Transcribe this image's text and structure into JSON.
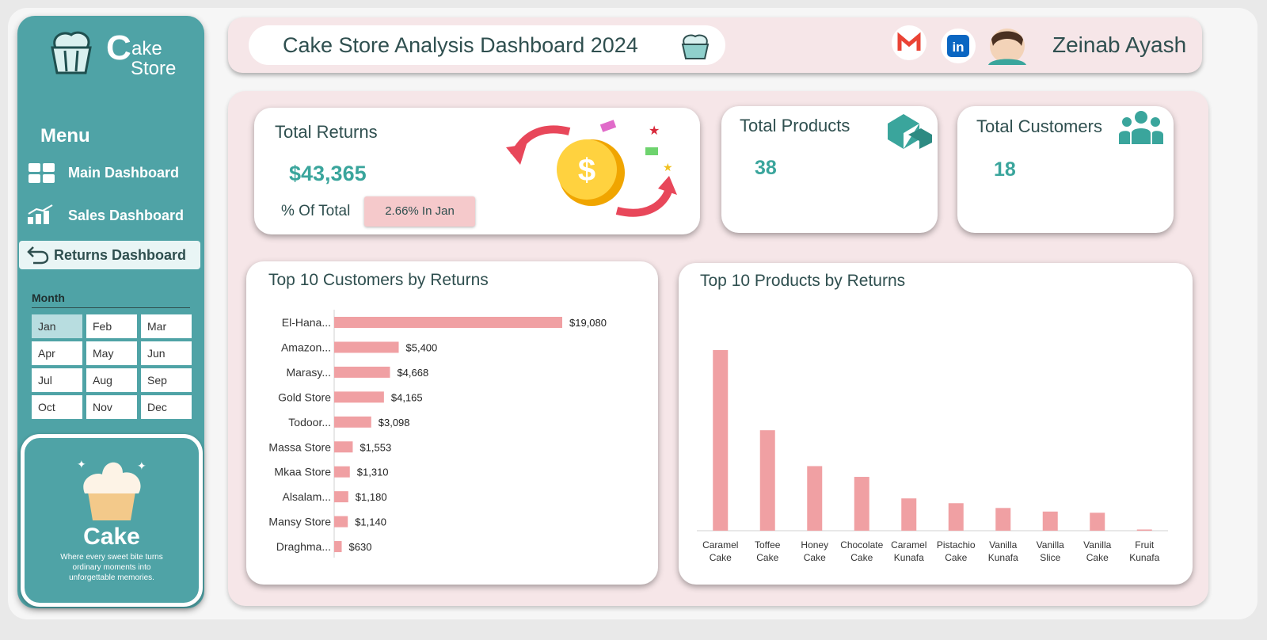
{
  "sidebar": {
    "logo_initial": "C",
    "logo_rest": "ake",
    "logo_store": "Store",
    "menu_title": "Menu",
    "menu": [
      "Main Dashboard",
      "Sales Dashboard",
      "Returns Dashboard"
    ],
    "slicer": {
      "title": "Month",
      "months": [
        "Jan",
        "Feb",
        "Mar",
        "Apr",
        "May",
        "Jun",
        "Jul",
        "Aug",
        "Sep",
        "Oct",
        "Nov",
        "Dec"
      ]
    },
    "card": {
      "title": "Cake",
      "tagline": "Where every sweet bite turns ordinary moments into unforgettable memories."
    }
  },
  "header": {
    "title": "Cake Store Analysis Dashboard 2024",
    "user": "Zeinab Ayash"
  },
  "kpis": {
    "returns": {
      "title": "Total Returns",
      "value": "$43,365",
      "share_label": "% Of Total",
      "share": "2.66%  In Jan"
    },
    "products": {
      "title": "Total Products",
      "value": "38"
    },
    "customers": {
      "title": "Total Customers",
      "value": "18"
    }
  },
  "chart_data": [
    {
      "type": "hbar",
      "title": "Top 10 Customers by Returns",
      "categories": [
        "El-Hana...",
        "Amazon...",
        "Marasy...",
        "Gold Store",
        "Todoor...",
        "Massa Store",
        "Mkaa Store",
        "Alsalam...",
        "Mansy Store",
        "Draghma..."
      ],
      "values": [
        19080,
        5400,
        4668,
        4165,
        3098,
        1553,
        1310,
        1180,
        1140,
        630
      ],
      "value_labels": [
        "$19,080",
        "$5,400",
        "$4,668",
        "$4,165",
        "$3,098",
        "$1,553",
        "$1,310",
        "$1,180",
        "$1,140",
        "$630"
      ],
      "color": "#f0a0a3"
    },
    {
      "type": "bar",
      "title": "Top 10 Products by Returns",
      "categories": [
        "Caramel Cake",
        "Toffee Cake",
        "Honey Cake",
        "Chocolate Cake",
        "Caramel Kunafa",
        "Pistachio Cake",
        "Vanilla Kunafa",
        "Vanilla Slice",
        "Vanilla Cake",
        "Fruit Kunafa"
      ],
      "values": [
        15100,
        8400,
        5400,
        4500,
        2700,
        2300,
        1900,
        1600,
        1500,
        100
      ],
      "color": "#f0a0a3"
    }
  ]
}
